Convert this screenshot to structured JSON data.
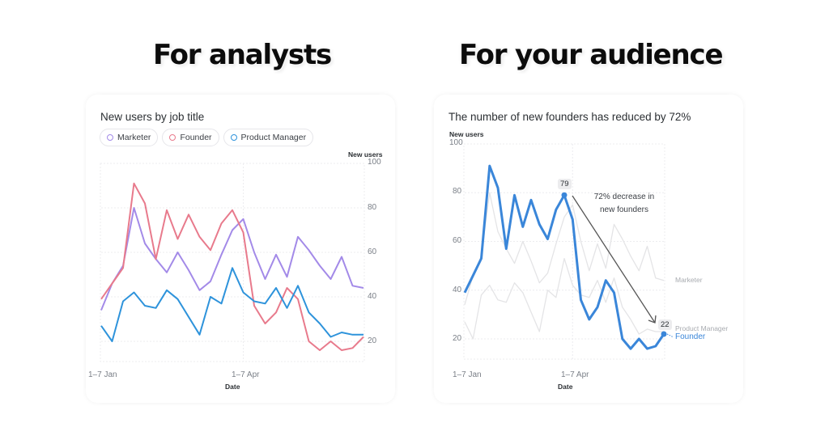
{
  "headlines": {
    "left": "For analysts",
    "right": "For your audience"
  },
  "colors": {
    "marketer": "#a38ae8",
    "founder": "#e87a8c",
    "product_manager": "#2e93db",
    "highlight": "#3a86d9",
    "muted": "#e4e4e6",
    "grid": "#ececef"
  },
  "left_card": {
    "title": "New users by job title",
    "legend": [
      {
        "label": "Marketer",
        "color": "#a38ae8"
      },
      {
        "label": "Founder",
        "color": "#e87a8c"
      },
      {
        "label": "Product Manager",
        "color": "#2e93db"
      }
    ],
    "y_axis_title": "New users",
    "y_ticks": [
      "100",
      "80",
      "60",
      "40",
      "20"
    ],
    "x_ticks": [
      "1–7 Jan",
      "1–7 Apr"
    ],
    "x_axis_title": "Date"
  },
  "right_card": {
    "title": "The number of new founders has reduced by 72%",
    "y_axis_title": "New users",
    "y_ticks": [
      "100",
      "80",
      "60",
      "40",
      "20"
    ],
    "x_ticks": [
      "1–7 Jan",
      "1–7 Apr"
    ],
    "x_axis_title": "Date",
    "annotation_line1": "72% decrease in",
    "annotation_line2": "new founders",
    "peak_label": "79",
    "end_label": "22",
    "series_labels": {
      "marketer": "Marketer",
      "product_manager": "Product Manager",
      "founder": "Founder"
    }
  },
  "chart_data": [
    {
      "type": "line",
      "title": "New users by job title",
      "xlabel": "Date",
      "ylabel": "New users",
      "ylim": [
        10,
        100
      ],
      "x_tick_labels": {
        "0": "1–7 Jan",
        "13": "1–7 Apr"
      },
      "x": [
        0,
        1,
        2,
        3,
        4,
        5,
        6,
        7,
        8,
        9,
        10,
        11,
        12,
        13,
        14,
        15,
        16,
        17,
        18,
        19,
        20,
        21,
        22,
        23,
        24
      ],
      "grid": true,
      "legend_position": "top-left",
      "series": [
        {
          "name": "Marketer",
          "color": "#a38ae8",
          "values": [
            34,
            46,
            54,
            80,
            64,
            57,
            51,
            60,
            52,
            43,
            47,
            59,
            70,
            75,
            60,
            48,
            59,
            49,
            67,
            61,
            54,
            48,
            58,
            45,
            44
          ]
        },
        {
          "name": "Founder",
          "color": "#e87a8c",
          "values": [
            39,
            46,
            53,
            91,
            82,
            57,
            79,
            66,
            77,
            67,
            61,
            73,
            79,
            69,
            36,
            28,
            33,
            44,
            39,
            20,
            16,
            20,
            16,
            17,
            22
          ]
        },
        {
          "name": "Product Manager",
          "color": "#2e93db",
          "values": [
            27,
            20,
            38,
            42,
            36,
            35,
            43,
            39,
            31,
            23,
            40,
            37,
            53,
            42,
            38,
            37,
            44,
            35,
            45,
            33,
            28,
            22,
            24,
            23,
            23
          ]
        }
      ]
    },
    {
      "type": "line",
      "title": "The number of new founders has reduced by 72%",
      "xlabel": "Date",
      "ylabel": "New users",
      "ylim": [
        10,
        100
      ],
      "x_tick_labels": {
        "0": "1–7 Jan",
        "13": "1–7 Apr"
      },
      "x": [
        0,
        1,
        2,
        3,
        4,
        5,
        6,
        7,
        8,
        9,
        10,
        11,
        12,
        13,
        14,
        15,
        16,
        17,
        18,
        19,
        20,
        21,
        22,
        23,
        24
      ],
      "grid": true,
      "legend_position": "end-of-line labels",
      "annotations": [
        {
          "text": "79",
          "x": 12,
          "y": 79
        },
        {
          "text": "22",
          "x": 24,
          "y": 22
        },
        {
          "text": "72% decrease in new founders",
          "arrow_from": 12,
          "arrow_to": 24
        }
      ],
      "series": [
        {
          "name": "Marketer",
          "color": "#e4e4e6",
          "values": [
            34,
            46,
            54,
            80,
            64,
            57,
            51,
            60,
            52,
            43,
            47,
            59,
            70,
            75,
            60,
            48,
            59,
            49,
            67,
            61,
            54,
            48,
            58,
            45,
            44
          ]
        },
        {
          "name": "Product Manager",
          "color": "#e4e4e6",
          "values": [
            27,
            20,
            38,
            42,
            36,
            35,
            43,
            39,
            31,
            23,
            40,
            37,
            53,
            42,
            38,
            37,
            44,
            35,
            45,
            33,
            28,
            22,
            24,
            23,
            23
          ]
        },
        {
          "name": "Founder",
          "color": "#3a86d9",
          "values": [
            39,
            46,
            53,
            91,
            82,
            57,
            79,
            66,
            77,
            67,
            61,
            73,
            79,
            69,
            36,
            28,
            33,
            44,
            39,
            20,
            16,
            20,
            16,
            17,
            22
          ]
        }
      ]
    }
  ]
}
